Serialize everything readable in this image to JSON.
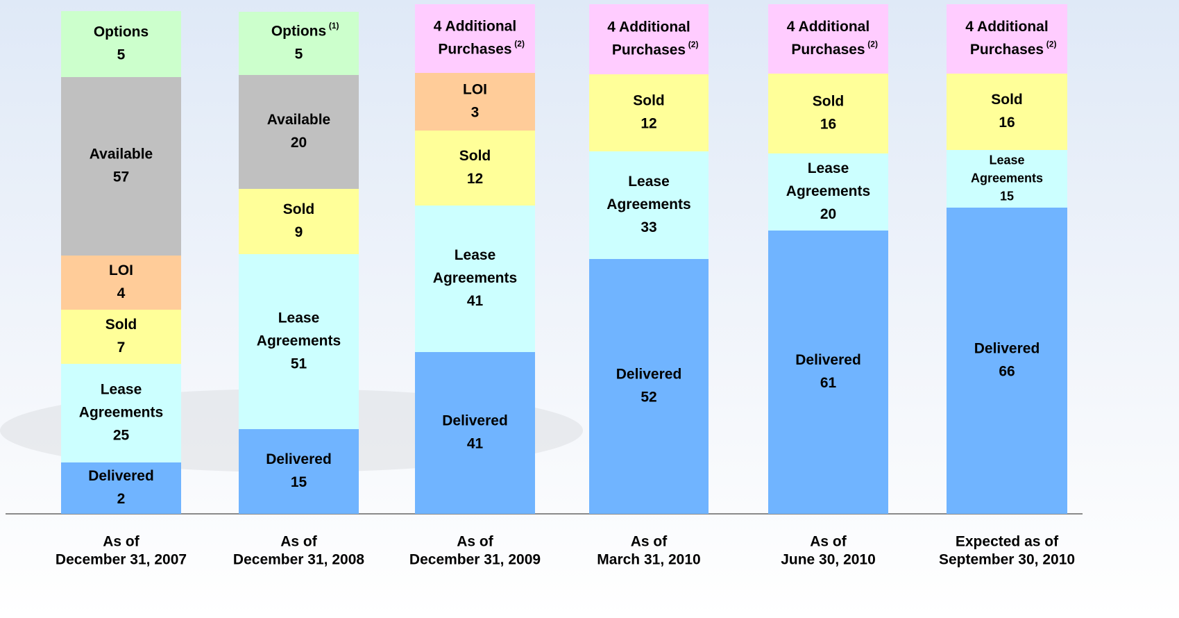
{
  "chart_data": {
    "type": "stacked_bar",
    "columns": [
      {
        "label": [
          "As of",
          "December 31, 2007"
        ],
        "segments": [
          {
            "name": [
              "Delivered"
            ],
            "value": 2,
            "color": "#70b4ff"
          },
          {
            "name": [
              "Lease",
              "Agreements"
            ],
            "value": 25,
            "color": "#ccffff"
          },
          {
            "name": [
              "Sold"
            ],
            "value": 7,
            "color": "#ffff99"
          },
          {
            "name": [
              "LOI"
            ],
            "value": 4,
            "color": "#ffcc99"
          },
          {
            "name": [
              "Available"
            ],
            "value": 57,
            "color": "#c0c0c0"
          },
          {
            "name": [
              "Options"
            ],
            "value": 5,
            "color": "#ccffcc"
          }
        ]
      },
      {
        "label": [
          "As of",
          "December 31, 2008"
        ],
        "segments": [
          {
            "name": [
              "Delivered"
            ],
            "value": 15,
            "color": "#70b4ff"
          },
          {
            "name": [
              "Lease",
              "Agreements"
            ],
            "value": 51,
            "color": "#ccffff"
          },
          {
            "name": [
              "Sold"
            ],
            "value": 9,
            "color": "#ffff99"
          },
          {
            "name": [
              "Available"
            ],
            "value": 20,
            "color": "#c0c0c0"
          },
          {
            "name": [
              "Options"
            ],
            "note": "(1)",
            "value": 5,
            "color": "#ccffcc"
          }
        ]
      },
      {
        "label": [
          "As of",
          "December 31, 2009"
        ],
        "segments": [
          {
            "name": [
              "Delivered"
            ],
            "value": 41,
            "color": "#70b4ff"
          },
          {
            "name": [
              "Lease",
              "Agreements"
            ],
            "value": 41,
            "color": "#ccffff"
          },
          {
            "name": [
              "Sold"
            ],
            "value": 12,
            "color": "#ffff99"
          },
          {
            "name": [
              "LOI"
            ],
            "value": 3,
            "color": "#ffcc99"
          },
          {
            "name": [
              "4 Additional",
              "Purchases"
            ],
            "note": "(2)",
            "color": "#ffccff"
          }
        ]
      },
      {
        "label": [
          "As of",
          "March 31, 2010"
        ],
        "segments": [
          {
            "name": [
              "Delivered"
            ],
            "value": 52,
            "color": "#70b4ff"
          },
          {
            "name": [
              "Lease",
              "Agreements"
            ],
            "value": 33,
            "color": "#ccffff"
          },
          {
            "name": [
              "Sold"
            ],
            "value": 12,
            "color": "#ffff99"
          },
          {
            "name": [
              "4 Additional",
              "Purchases"
            ],
            "note": "(2)",
            "color": "#ffccff"
          }
        ]
      },
      {
        "label": [
          "As of",
          "June 30, 2010"
        ],
        "segments": [
          {
            "name": [
              "Delivered"
            ],
            "value": 61,
            "color": "#70b4ff"
          },
          {
            "name": [
              "Lease",
              "Agreements"
            ],
            "value": 20,
            "color": "#ccffff"
          },
          {
            "name": [
              "Sold"
            ],
            "value": 16,
            "color": "#ffff99"
          },
          {
            "name": [
              "4 Additional",
              "Purchases"
            ],
            "note": "(2)",
            "color": "#ffccff"
          }
        ]
      },
      {
        "label": [
          "Expected as of",
          "September 30, 2010"
        ],
        "segments": [
          {
            "name": [
              "Delivered"
            ],
            "value": 66,
            "color": "#70b4ff"
          },
          {
            "name": [
              "Lease",
              "Agreements"
            ],
            "value": 15,
            "color": "#ccffff"
          },
          {
            "name": [
              "Sold"
            ],
            "value": 16,
            "color": "#ffff99"
          },
          {
            "name": [
              "4 Additional",
              "Purchases"
            ],
            "note": "(2)",
            "color": "#ffccff"
          }
        ]
      }
    ]
  }
}
